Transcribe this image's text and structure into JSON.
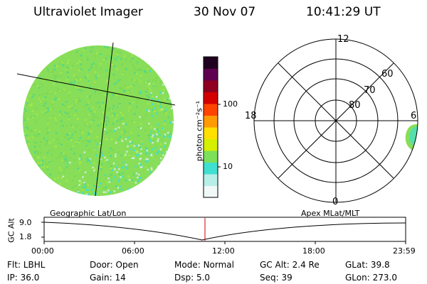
{
  "header": {
    "instrument": "Ultraviolet Imager",
    "date": "30 Nov 07",
    "time": "10:41:29 UT"
  },
  "colorbar": {
    "unit_label": "photon cm⁻²s⁻¹",
    "ticks": [
      "100",
      "10"
    ],
    "colors": [
      "#f0f8f8",
      "#b8eee8",
      "#40e0d0",
      "#7de05a",
      "#d4f000",
      "#ffe000",
      "#ff9a00",
      "#ff4400",
      "#d40000",
      "#900020",
      "#600050",
      "#200020"
    ]
  },
  "polar_plot": {
    "lat_labels": [
      "60",
      "70",
      "80"
    ],
    "mlt_labels": {
      "top": "12",
      "left": "18",
      "right": "6",
      "bottom": "0"
    }
  },
  "timeline": {
    "left_title": "Geographic Lat/Lon",
    "right_title": "Apex  MLat/MLT",
    "y_axis_label": "GC Alt",
    "y_ticks": [
      "9.0",
      "1.8"
    ],
    "x_ticks": [
      "00:00",
      "06:00",
      "12:00",
      "18:00",
      "23:59"
    ],
    "marker_time": "10:41:29"
  },
  "status": {
    "row1": [
      {
        "label": "Flt:",
        "value": "LBHL"
      },
      {
        "label": "Door:",
        "value": "Open"
      },
      {
        "label": "Mode:",
        "value": "Normal"
      },
      {
        "label": "GC Alt:",
        "value": "2.4 Re"
      },
      {
        "label": "GLat:",
        "value": "39.8"
      }
    ],
    "row2": [
      {
        "label": "IP:",
        "value": "36.0"
      },
      {
        "label": "Gain:",
        "value": "14"
      },
      {
        "label": "Dsp:",
        "value": "5.0"
      },
      {
        "label": "Seq:",
        "value": "39"
      },
      {
        "label": "GLon:",
        "value": "273.0"
      }
    ]
  }
}
